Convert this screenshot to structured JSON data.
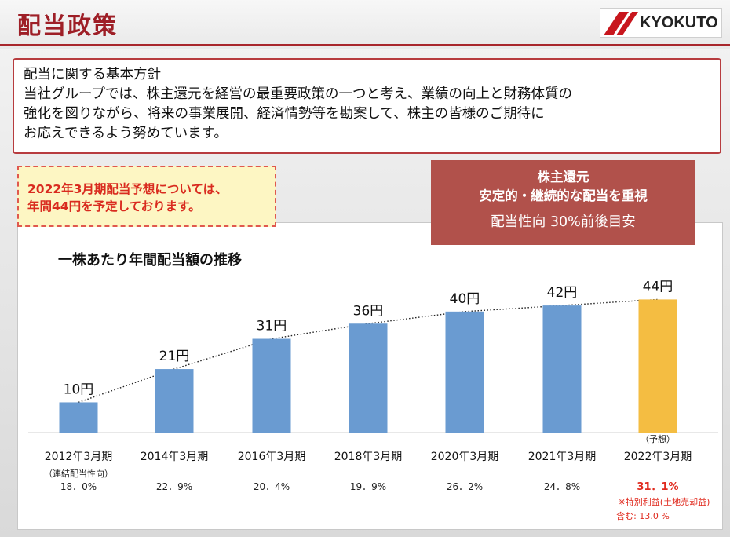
{
  "page": {
    "title": "配当政策",
    "logo_text": "KYOKUTO"
  },
  "policy": {
    "heading": "配当に関する基本方針",
    "lines": [
      "当社グループでは、株主還元を経営の最重要政策の一つと考え、業績の向上と財務体質の",
      "強化を図りながら、将来の事業展開、経済情勢等を勘案して、株主の皆様のご期待に",
      "お応えできるよう努めています。"
    ]
  },
  "forecast_note": {
    "line1": "2022年3月期配当予想については、",
    "line2": "年間44円を予定しております。"
  },
  "shareholder_return": {
    "title": "株主還元",
    "subtitle": "安定的・継続的な配当を重視",
    "ratio": "配当性向 30%前後目安"
  },
  "colors": {
    "brand_red": "#9e1f27",
    "bar_actual": "#6a9bd1",
    "bar_forecast": "#f4bd42",
    "highlight_red": "#e02a1e"
  },
  "chart_data": {
    "type": "bar",
    "title": "一株あたり年間配当額の推移",
    "categories": [
      "2012年3月期",
      "2014年3月期",
      "2016年3月期",
      "2018年3月期",
      "2020年3月期",
      "2021年3月期",
      "2022年3月期"
    ],
    "values": [
      10,
      21,
      31,
      36,
      40,
      42,
      44
    ],
    "value_labels": [
      "10円",
      "21円",
      "31円",
      "36円",
      "40円",
      "42円",
      "44円"
    ],
    "forecast_index": 6,
    "forecast_label": "（予想）",
    "ylim": [
      0,
      48
    ],
    "trendline": "dotted",
    "payout_label": "（連結配当性向）",
    "payout_ratios": [
      "18．0%",
      "22．9%",
      "20．4%",
      "19．9%",
      "26．2%",
      "24．8%",
      "31．1%"
    ],
    "note_line1": "※特別利益(土地売却益)",
    "note_line2": "含む: 13.0 %"
  }
}
